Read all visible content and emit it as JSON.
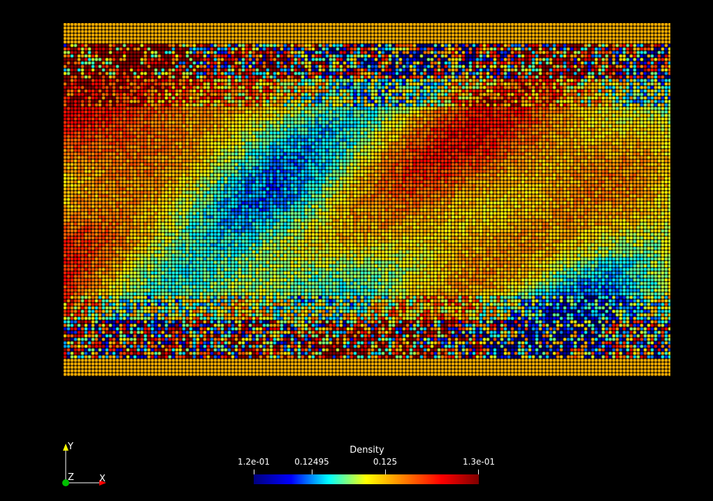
{
  "render": {
    "background": "#000000",
    "field_name": "Density",
    "colormap": "jet",
    "colormap_stops": [
      "#00007f",
      "#0000ff",
      "#00ffff",
      "#ffff00",
      "#ff7f00",
      "#ff0000",
      "#7f0000"
    ]
  },
  "colorbar": {
    "title": "Density",
    "range": [
      0.1249,
      0.1251
    ],
    "ticks": [
      {
        "label": "1.2e-01",
        "value": 0.1249
      },
      {
        "label": "0.12495",
        "value": 0.12495
      },
      {
        "label": "0.125",
        "value": 0.125
      },
      {
        "label": "1.3e-01",
        "value": 0.1251
      }
    ]
  },
  "axes": {
    "y_label": "Y",
    "z_label": "Z",
    "x_label": "X",
    "y_color": "#ffff00",
    "z_color": "#00c000",
    "x_color": "#ff0000"
  }
}
